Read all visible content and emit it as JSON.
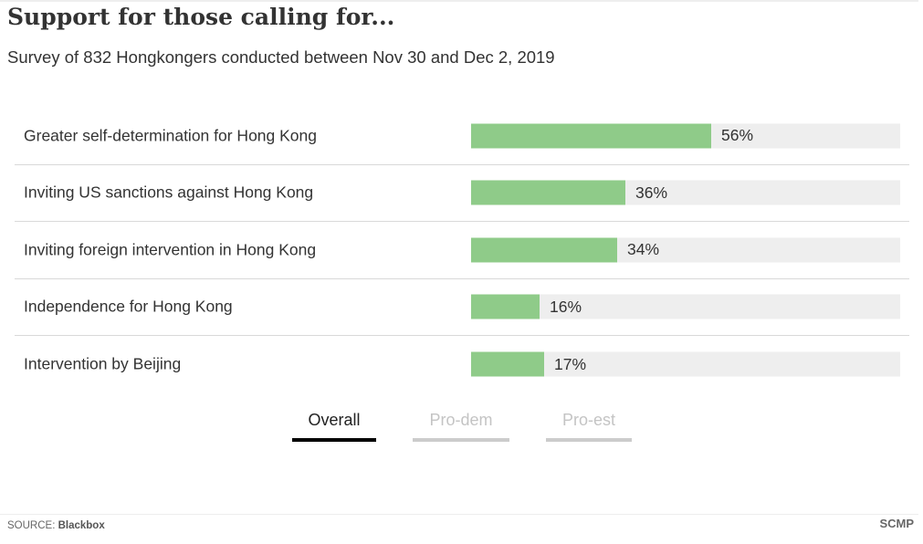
{
  "title": "Support for those calling for...",
  "subtitle": "Survey of 832 Hongkongers conducted between Nov 30 and Dec 2, 2019",
  "chart_data": {
    "type": "bar",
    "orientation": "horizontal",
    "categories": [
      "Greater self-determination for Hong Kong",
      "Inviting US sanctions against Hong Kong",
      "Inviting foreign intervention in Hong Kong",
      "Independence for Hong Kong",
      "Intervention by Beijing"
    ],
    "values": [
      56,
      36,
      34,
      16,
      17
    ],
    "value_labels": [
      "56%",
      "36%",
      "34%",
      "16%",
      "17%"
    ],
    "xlim": [
      0,
      100
    ],
    "unit": "%",
    "bar_color": "#8fcb89",
    "track_color": "#eeeeee",
    "grid": false
  },
  "tabs": [
    {
      "label": "Overall",
      "active": true
    },
    {
      "label": "Pro-dem",
      "active": false
    },
    {
      "label": "Pro-est",
      "active": false
    }
  ],
  "colors": {
    "tab_active_text": "#222222",
    "tab_inactive_text": "#c4c4c4",
    "tab_active_underline": "#000000",
    "tab_inactive_underline": "#cccccc"
  },
  "footer": {
    "source_label": "SOURCE: ",
    "source_name": "Blackbox",
    "brand": "SCMP"
  }
}
